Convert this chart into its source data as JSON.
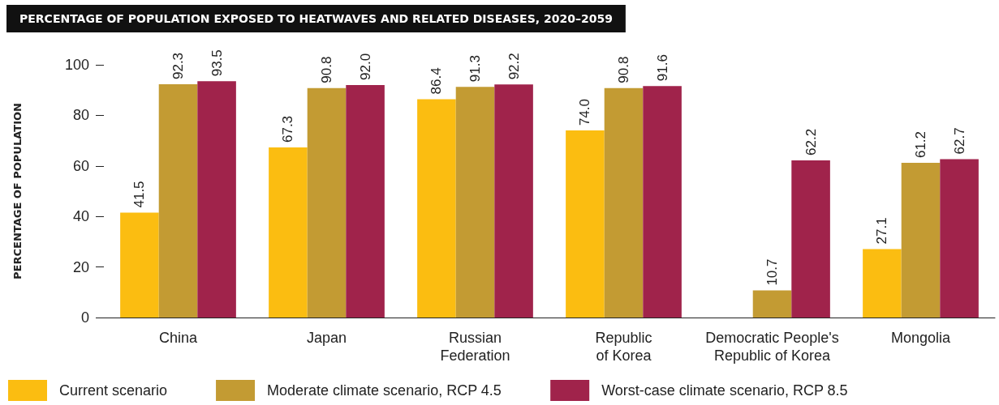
{
  "chart_data": {
    "type": "bar",
    "title": "PERCENTAGE OF POPULATION EXPOSED TO HEATWAVES AND RELATED DISEASES, 2020–2059",
    "ylabel": "PERCENTAGE OF POPULATION",
    "categories": [
      "China",
      "Japan",
      "Russian\nFederation",
      "Republic\nof Korea",
      "Democratic People's\nRepublic of Korea",
      "Mongolia"
    ],
    "series": [
      {
        "name": "Current scenario",
        "color": "#fbbd11",
        "values": [
          41.5,
          67.3,
          86.4,
          74.0,
          null,
          27.1
        ],
        "value_labels": [
          "41.5",
          "67.3",
          "86.4",
          "74.0",
          null,
          "27.1"
        ]
      },
      {
        "name": "Moderate climate scenario, RCP 4.5",
        "color": "#c39b33",
        "values": [
          92.3,
          90.8,
          91.3,
          90.8,
          10.7,
          61.2
        ],
        "value_labels": [
          "92.3",
          "90.8",
          "91.3",
          "90.8",
          "10.7",
          "61.2"
        ]
      },
      {
        "name": "Worst-case climate scenario, RCP 8.5",
        "color": "#a0234b",
        "values": [
          93.5,
          92.0,
          92.2,
          91.6,
          62.2,
          62.7
        ],
        "value_labels": [
          "93.5",
          "92.0",
          "92.2",
          "91.6",
          "62.2",
          "62.7"
        ]
      }
    ],
    "ylim": [
      0,
      100
    ],
    "yticks": [
      0,
      20,
      40,
      60,
      80,
      100
    ],
    "grid": false,
    "legend": "bottom left"
  }
}
